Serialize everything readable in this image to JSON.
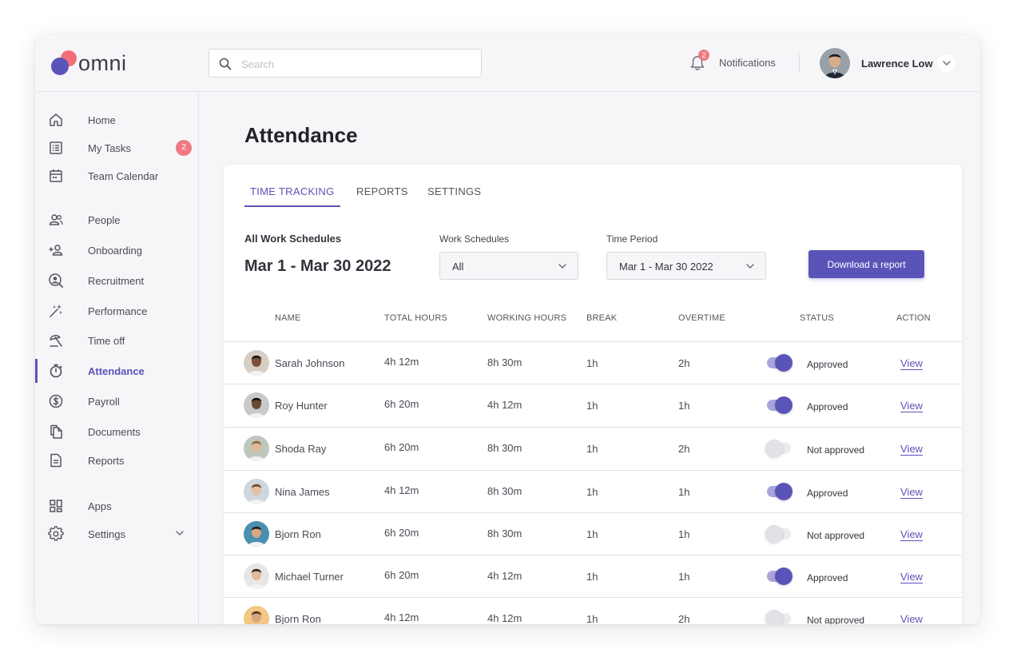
{
  "brand": {
    "name": "omni",
    "primary": "#5b54b8",
    "accent": "#f0626d"
  },
  "header": {
    "search_placeholder": "Search",
    "notifications": {
      "label": "Notifications",
      "count": "2"
    },
    "user": {
      "name": "Lawrence Low"
    }
  },
  "sidebar": {
    "items": [
      {
        "label": "Home",
        "icon": "home-icon"
      },
      {
        "label": "My Tasks",
        "icon": "tasks-icon",
        "badge": "2"
      },
      {
        "label": "Team Calendar",
        "icon": "calendar-icon"
      },
      {
        "label": "People",
        "icon": "people-icon"
      },
      {
        "label": "Onboarding",
        "icon": "add-user-icon"
      },
      {
        "label": "Recruitment",
        "icon": "recruitment-search-icon"
      },
      {
        "label": "Performance",
        "icon": "sparkle-wand-icon"
      },
      {
        "label": "Time off",
        "icon": "beach-umbrella-icon"
      },
      {
        "label": "Attendance",
        "icon": "stopwatch-icon",
        "active": true
      },
      {
        "label": "Payroll",
        "icon": "dollar-icon"
      },
      {
        "label": "Documents",
        "icon": "documents-icon"
      },
      {
        "label": "Reports",
        "icon": "report-icon"
      },
      {
        "label": "Apps",
        "icon": "apps-grid-icon"
      },
      {
        "label": "Settings",
        "icon": "gear-icon"
      }
    ]
  },
  "page": {
    "title": "Attendance"
  },
  "tabs": [
    {
      "label": "TIME TRACKING",
      "active": true
    },
    {
      "label": "REPORTS"
    },
    {
      "label": "SETTINGS"
    }
  ],
  "filters": {
    "heading": "All Work Schedules",
    "range": "Mar 1 - Mar 30 2022",
    "work_schedules": {
      "label": "Work Schedules",
      "value": "All"
    },
    "time_period": {
      "label": "Time Period",
      "value": "Mar 1 - Mar 30 2022"
    },
    "download_label": "Download a report"
  },
  "table": {
    "headers": [
      "NAME",
      "TOTAL HOURS",
      "WORKING HOURS",
      "BREAK",
      "OVERTIME",
      "STATUS",
      "ACTION"
    ],
    "rows": [
      {
        "name": "Sarah Johnson",
        "total": "4h 12m",
        "working": "8h 30m",
        "break": "1h",
        "overtime": "2h",
        "approved": true,
        "status": "Approved",
        "action": "View"
      },
      {
        "name": "Roy Hunter",
        "total": "6h 20m",
        "working": "4h 12m",
        "break": "1h",
        "overtime": "1h",
        "approved": true,
        "status": "Approved",
        "action": "View"
      },
      {
        "name": "Shoda Ray",
        "total": "6h 20m",
        "working": "8h 30m",
        "break": "1h",
        "overtime": "2h",
        "approved": false,
        "status": "Not approved",
        "action": "View"
      },
      {
        "name": "Nina James",
        "total": "4h 12m",
        "working": "8h 30m",
        "break": "1h",
        "overtime": "1h",
        "approved": true,
        "status": "Approved",
        "action": "View"
      },
      {
        "name": "Bjorn Ron",
        "total": "6h 20m",
        "working": "8h 30m",
        "break": "1h",
        "overtime": "1h",
        "approved": false,
        "status": "Not approved",
        "action": "View"
      },
      {
        "name": "Michael Turner",
        "total": "6h 20m",
        "working": "4h 12m",
        "break": "1h",
        "overtime": "1h",
        "approved": true,
        "status": "Approved",
        "action": "View"
      },
      {
        "name": "Bjorn Ron",
        "total": "4h 12m",
        "working": "4h 12m",
        "break": "1h",
        "overtime": "2h",
        "approved": false,
        "status": "Not approved",
        "action": "View"
      }
    ]
  }
}
